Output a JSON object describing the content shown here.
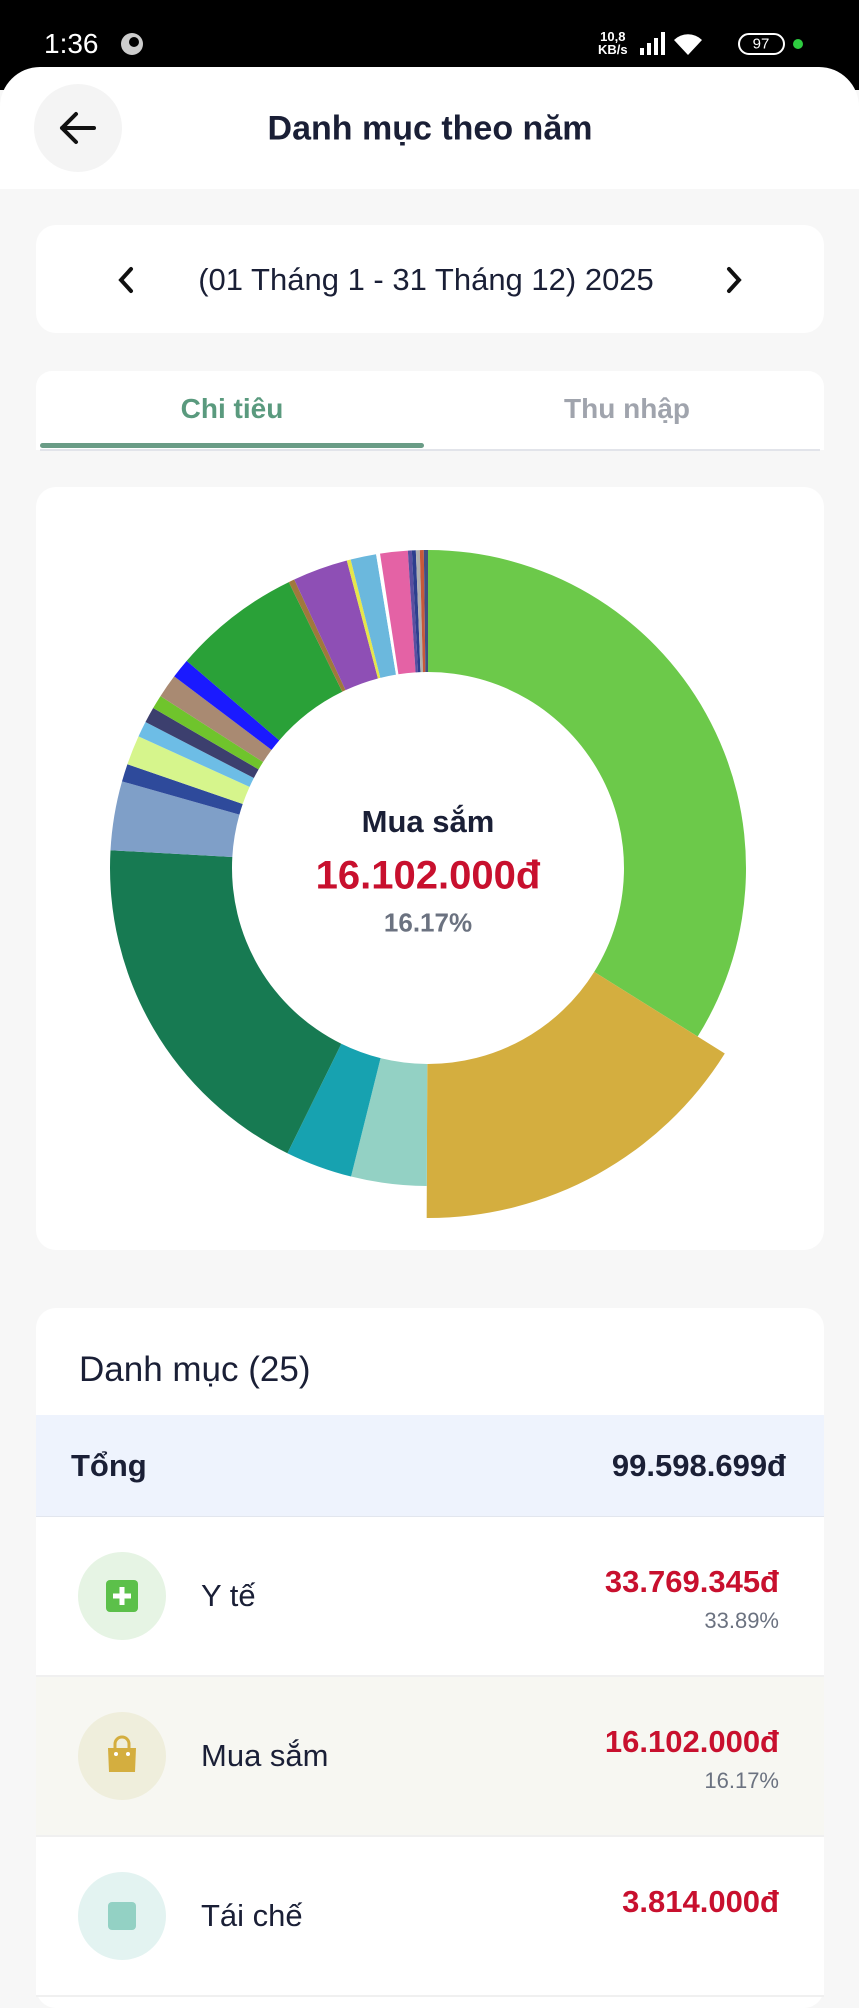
{
  "status_bar": {
    "time": "1:36",
    "network_speed": "10,8",
    "network_unit": "KB/s",
    "battery": "97"
  },
  "header": {
    "title": "Danh mục theo năm"
  },
  "period": {
    "label": "(01 Tháng 1 - 31 Tháng 12) 2025"
  },
  "tabs": {
    "active": 0,
    "items": [
      {
        "label": "Chi tiêu"
      },
      {
        "label": "Thu nhập"
      }
    ]
  },
  "chart_data": {
    "type": "donut",
    "values": [
      33.89,
      16.17,
      3.83,
      3.4,
      18.6,
      3.5,
      0.9,
      1.5,
      0.8,
      0.8,
      0.7,
      1.2,
      1.0,
      6.5,
      0.3,
      2.8,
      0.2,
      1.3,
      0.2,
      1.4,
      0.2,
      0.2,
      0.2,
      0.2,
      0.21
    ],
    "colors": [
      "#6cc94a",
      "#d4ae3f",
      "#93d1c4",
      "#17a2b0",
      "#177a52",
      "#7f9fc8",
      "#2e4a9b",
      "#d6f58c",
      "#6dbde6",
      "#3c3f6e",
      "#6fc42c",
      "#a98a72",
      "#1a1aff",
      "#2aa138",
      "#a0783c",
      "#8e4fb5",
      "#e6e64a",
      "#6bb8dd",
      "#ffffff",
      "#e462a5",
      "#5a4fa0",
      "#2d3e8e",
      "#b0b0b0",
      "#c75a3a",
      "#405080"
    ],
    "selected": 1,
    "center_label": "Mua sắm",
    "center_value": "16.102.000đ",
    "center_percent": "16.17%"
  },
  "category_list": {
    "title": "Danh mục (25)",
    "total_label": "Tổng",
    "total_value": "99.598.699đ",
    "items": [
      {
        "name": "Y tế",
        "amount": "33.769.345đ",
        "percent": "33.89%"
      },
      {
        "name": "Mua sắm",
        "amount": "16.102.000đ",
        "percent": "16.17%"
      },
      {
        "name": "Tái chế",
        "amount": "3.814.000đ"
      }
    ]
  }
}
